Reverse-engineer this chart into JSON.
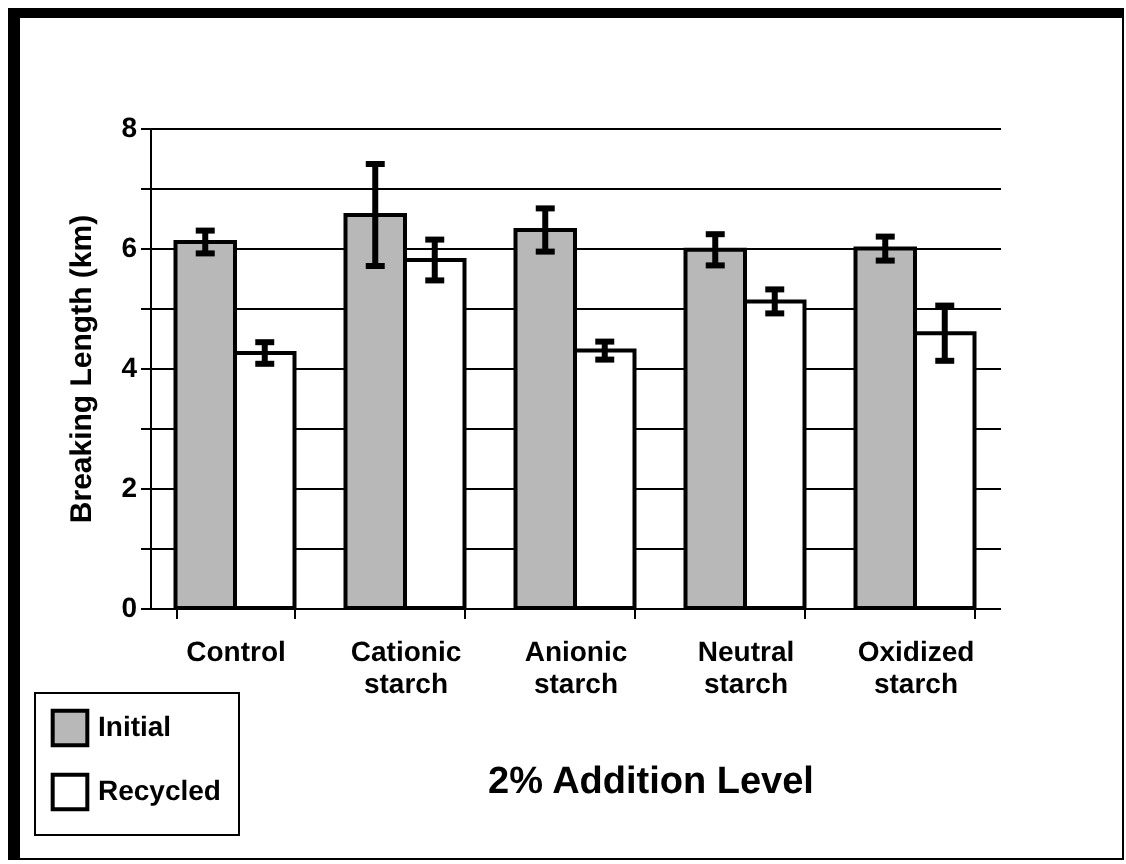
{
  "chart_data": {
    "type": "bar",
    "xlabel": "2% Addition Level",
    "ylabel": "Breaking Length (km)",
    "categories": [
      "Control",
      "Cationic starch",
      "Anionic starch",
      "Neutral starch",
      "Oxidized starch"
    ],
    "series": [
      {
        "name": "Initial",
        "color": "#b8b8b8",
        "values": [
          6.1,
          6.55,
          6.3,
          5.97,
          5.99
        ],
        "errors": [
          0.19,
          0.85,
          0.36,
          0.26,
          0.2
        ]
      },
      {
        "name": "Recycled",
        "color": "#ffffff",
        "values": [
          4.25,
          5.8,
          4.29,
          5.11,
          4.58
        ],
        "errors": [
          0.18,
          0.34,
          0.15,
          0.2,
          0.46
        ]
      }
    ],
    "ylim": [
      0,
      8
    ],
    "yticks": [
      0,
      {
        "value": 1,
        "label": null
      },
      2,
      {
        "value": 3,
        "label": null
      },
      4,
      {
        "value": 5,
        "label": null
      },
      6,
      {
        "value": 7,
        "label": null
      },
      8
    ],
    "grid": "y",
    "legend": "bottom left"
  }
}
